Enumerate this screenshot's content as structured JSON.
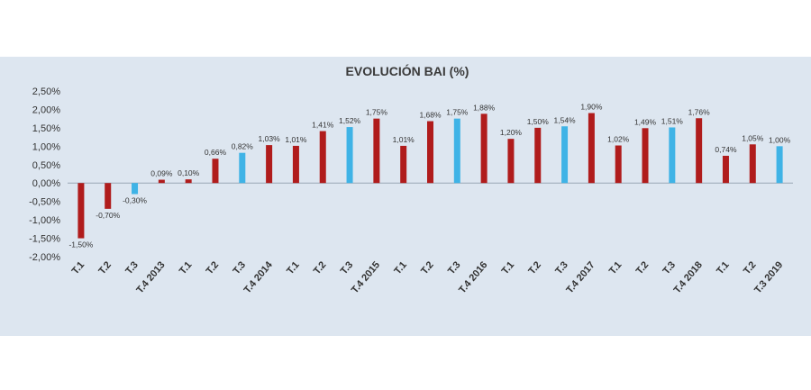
{
  "chart_data": {
    "type": "bar",
    "title": "EVOLUCIÓN BAI (%)",
    "xlabel": "",
    "ylabel": "",
    "ylim": [
      -2.0,
      2.5
    ],
    "y_ticks": [
      2.5,
      2.0,
      1.5,
      1.0,
      0.5,
      0.0,
      -0.5,
      -1.0,
      -1.5,
      -2.0
    ],
    "y_tick_labels": [
      "2,50%",
      "2,00%",
      "1,50%",
      "1,00%",
      "0,50%",
      "0,00%",
      "-0,50%",
      "-1,00%",
      "-1,50%",
      "-2,00%"
    ],
    "grid": false,
    "legend": "none",
    "colors": {
      "quarter": "#b01c1c",
      "third_quarter": "#3fb3e6",
      "panel_background": "#dde6f0"
    },
    "categories": [
      "T.1",
      "T.2",
      "T.3",
      "T.4 2013",
      "T.1",
      "T.2",
      "T.3",
      "T.4 2014",
      "T.1",
      "T.2",
      "T.3",
      "T.4 2015",
      "T.1",
      "T.2",
      "T.3",
      "T.4 2016",
      "T.1",
      "T.2",
      "T.3",
      "T.4 2017",
      "T.1",
      "T.2",
      "T.3",
      "T.4 2018",
      "T.1",
      "T.2",
      "T.3 2019"
    ],
    "values": [
      -1.5,
      -0.7,
      -0.3,
      0.09,
      0.1,
      0.66,
      0.82,
      1.03,
      1.01,
      1.41,
      1.52,
      1.75,
      1.01,
      1.68,
      1.75,
      1.88,
      1.2,
      1.5,
      1.54,
      1.9,
      1.02,
      1.49,
      1.51,
      1.76,
      0.74,
      1.05,
      1.0
    ],
    "value_labels": [
      "-1,50%",
      "-0,70%",
      "-0,30%",
      "0,09%",
      "0,10%",
      "0,66%",
      "0,82%",
      "1,03%",
      "1,01%",
      "1,41%",
      "1,52%",
      "1,75%",
      "1,01%",
      "1,68%",
      "1,75%",
      "1,88%",
      "1,20%",
      "1,50%",
      "1,54%",
      "1,90%",
      "1,02%",
      "1,49%",
      "1,51%",
      "1,76%",
      "0,74%",
      "1,05%",
      "1,00%"
    ],
    "bar_color_keys": [
      "quarter",
      "quarter",
      "third_quarter",
      "quarter",
      "quarter",
      "quarter",
      "third_quarter",
      "quarter",
      "quarter",
      "quarter",
      "third_quarter",
      "quarter",
      "quarter",
      "quarter",
      "third_quarter",
      "quarter",
      "quarter",
      "quarter",
      "third_quarter",
      "quarter",
      "quarter",
      "quarter",
      "third_quarter",
      "quarter",
      "quarter",
      "quarter",
      "third_quarter"
    ]
  }
}
